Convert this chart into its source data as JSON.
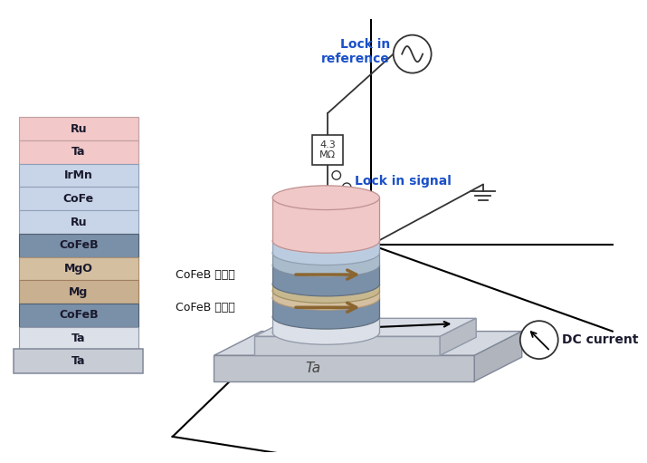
{
  "bg_color": "#ffffff",
  "layers": [
    {
      "label": "Ru",
      "color": "#f2c8c8",
      "border": "#c0a0a0"
    },
    {
      "label": "Ta",
      "color": "#f2c8c8",
      "border": "#c0a0a0"
    },
    {
      "label": "IrMn",
      "color": "#c8d4e8",
      "border": "#90a0b8"
    },
    {
      "label": "CoFe",
      "color": "#c8d4e8",
      "border": "#90a0b8"
    },
    {
      "label": "Ru",
      "color": "#c8d4e8",
      "border": "#90a0b8"
    },
    {
      "label": "CoFeB",
      "color": "#7a8fa8",
      "border": "#506070"
    },
    {
      "label": "MgO",
      "color": "#d4bfa0",
      "border": "#b09070"
    },
    {
      "label": "Mg",
      "color": "#c8b090",
      "border": "#a08060"
    },
    {
      "label": "CoFeB",
      "color": "#7a8fa8",
      "border": "#506070"
    },
    {
      "label": "Ta",
      "color": "#dce0e8",
      "border": "#9098a8"
    },
    {
      "label": "Ta",
      "color": "#c8ccd4",
      "border": "#808898",
      "base": true
    }
  ],
  "label_fixed": "CoFeB 고정층",
  "label_free": "CoFeB 자유층",
  "lock_in_ref": "Lock in\nreference",
  "lock_in_sig": "Lock in signal",
  "resistor_label": "4.3\nMΩ",
  "dc_label": "DC current",
  "ta_label": "Ta",
  "arrow_color": "#8b6530"
}
